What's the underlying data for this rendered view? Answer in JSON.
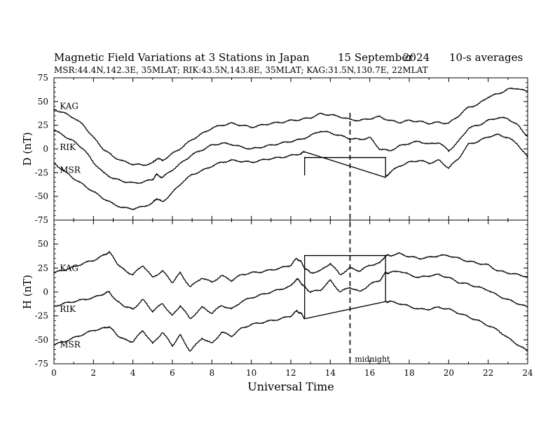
{
  "header": {
    "title": "Magnetic Field Variations at 3 Stations in Japan",
    "date": "15 September",
    "year": "2024",
    "averaging": "10-s averages",
    "stations_line": "MSR:44.4N,142.3E, 35MLAT;  RIK:43.5N,143.8E, 35MLAT;  KAG:31.5N,130.7E, 22MLAT"
  },
  "chart_data": [
    {
      "type": "line",
      "ylabel": "D (nT)",
      "xlabel": "",
      "xlim": [
        0,
        24
      ],
      "ylim": [
        -75,
        75
      ],
      "yticks": [
        75,
        50,
        25,
        0,
        -25,
        -50,
        -75
      ],
      "grid": false,
      "series": [
        {
          "name": "KAG",
          "x": [
            0,
            0.5,
            1,
            1.5,
            2,
            2.5,
            3,
            3.5,
            4,
            4.5,
            5,
            5.2,
            5.5,
            6,
            6.5,
            7,
            7.5,
            8,
            8.5,
            9,
            9.5,
            10,
            10.5,
            11,
            11.5,
            12,
            12.5,
            13,
            13.5,
            14,
            14.5,
            15,
            15.5,
            16,
            16.5,
            17,
            17.5,
            18,
            18.5,
            19,
            19.5,
            20,
            20.5,
            21,
            21.5,
            22,
            22.5,
            23,
            23.5,
            24
          ],
          "y": [
            42,
            38,
            33,
            25,
            12,
            0,
            -8,
            -13,
            -16,
            -17,
            -15,
            -10,
            -12,
            -5,
            2,
            10,
            16,
            22,
            25,
            27,
            25,
            23,
            25,
            27,
            28,
            30,
            31,
            33,
            37,
            36,
            34,
            31,
            30,
            32,
            34,
            30,
            28,
            30,
            29,
            27,
            28,
            27,
            35,
            44,
            47,
            55,
            58,
            63,
            64,
            60
          ]
        },
        {
          "name": "RIK",
          "x": [
            0,
            0.5,
            1,
            1.5,
            2,
            2.5,
            3,
            3.5,
            4,
            4.5,
            5,
            5.2,
            5.5,
            6,
            6.5,
            7,
            7.5,
            8,
            8.5,
            9,
            9.5,
            10,
            10.5,
            11,
            11.5,
            12,
            12.5,
            13,
            13.5,
            14,
            14.5,
            15,
            15.5,
            16,
            16.5,
            17,
            17.5,
            18,
            18.5,
            19,
            19.5,
            20,
            20.5,
            21,
            21.5,
            22,
            22.5,
            23,
            23.5,
            24
          ],
          "y": [
            20,
            14,
            8,
            0,
            -14,
            -25,
            -31,
            -34,
            -36,
            -35,
            -32,
            -27,
            -30,
            -22,
            -14,
            -6,
            -1,
            4,
            6,
            5,
            2,
            0,
            2,
            4,
            6,
            8,
            10,
            14,
            19,
            17,
            14,
            11,
            10,
            12,
            0,
            -2,
            3,
            6,
            8,
            5,
            7,
            -2,
            8,
            22,
            25,
            30,
            33,
            32,
            25,
            13
          ]
        },
        {
          "name": "MSR",
          "x": [
            0,
            0.5,
            1,
            1.5,
            2,
            2.5,
            3,
            3.5,
            4,
            4.5,
            5,
            5.2,
            5.5,
            6,
            6.5,
            7,
            7.5,
            8,
            8.5,
            9,
            9.5,
            10,
            10.5,
            11,
            11.5,
            12,
            12.5,
            12.7,
            16.8,
            17,
            17.5,
            18,
            18.5,
            19,
            19.5,
            20,
            20.5,
            21,
            21.5,
            22,
            22.5,
            23,
            23.5,
            24
          ],
          "y": [
            -15,
            -23,
            -31,
            -38,
            -45,
            -52,
            -58,
            -62,
            -63,
            -61,
            -57,
            -52,
            -56,
            -46,
            -35,
            -27,
            -23,
            -18,
            -14,
            -12,
            -13,
            -14,
            -12,
            -10,
            -9,
            -7,
            -5,
            -3,
            -30,
            -25,
            -18,
            -14,
            -12,
            -15,
            -12,
            -20,
            -10,
            5,
            8,
            13,
            15,
            12,
            5,
            -9
          ]
        }
      ],
      "annotations": [
        {
          "text": "KAG",
          "x": 0.15,
          "y": 45
        },
        {
          "text": "RIK",
          "x": 0.15,
          "y": 2
        },
        {
          "text": "MSR",
          "x": 0.15,
          "y": -22
        }
      ],
      "box": {
        "x1": 12.7,
        "x2": 16.8,
        "y_top": -9
      }
    },
    {
      "type": "line",
      "ylabel": "H (nT)",
      "xlabel": "Universal Time",
      "xlim": [
        0,
        24
      ],
      "ylim": [
        -75,
        75
      ],
      "yticks": [
        75,
        50,
        25,
        0,
        -25,
        -50,
        -75
      ],
      "xticks": [
        0,
        2,
        4,
        6,
        8,
        10,
        12,
        14,
        16,
        18,
        20,
        22,
        24
      ],
      "grid": false,
      "series": [
        {
          "name": "KAG",
          "x": [
            0,
            0.5,
            1,
            1.5,
            2,
            2.5,
            2.8,
            3.2,
            3.6,
            4,
            4.5,
            5,
            5.5,
            6,
            6.4,
            6.9,
            7.5,
            8,
            8.5,
            9,
            9.5,
            10,
            10.5,
            11,
            11.5,
            12,
            12.3,
            12.5,
            12.7,
            13,
            13.5,
            14,
            14.5,
            15,
            15.5,
            16,
            16.5,
            16.8,
            17,
            17.5,
            18,
            18.5,
            19,
            19.5,
            20,
            20.5,
            21,
            21.5,
            22,
            22.5,
            23,
            23.5,
            24
          ],
          "y": [
            20,
            23,
            26,
            30,
            33,
            38,
            42,
            30,
            22,
            18,
            28,
            15,
            22,
            10,
            20,
            5,
            15,
            10,
            17,
            12,
            18,
            20,
            21,
            23,
            25,
            28,
            35,
            32,
            25,
            20,
            22,
            30,
            18,
            25,
            22,
            28,
            30,
            38,
            38,
            40,
            37,
            35,
            36,
            38,
            38,
            35,
            32,
            30,
            28,
            22,
            20,
            18,
            16
          ]
        },
        {
          "name": "RIK",
          "x": [
            0,
            0.5,
            1,
            1.5,
            2,
            2.5,
            2.8,
            3.2,
            3.6,
            4,
            4.5,
            5,
            5.5,
            6,
            6.4,
            6.9,
            7.5,
            8,
            8.5,
            9,
            9.5,
            10,
            10.5,
            11,
            11.5,
            12,
            12.3,
            12.5,
            12.7,
            13,
            13.5,
            14,
            14.5,
            15,
            15.5,
            16,
            16.5,
            16.8,
            17,
            17.5,
            18,
            18.5,
            19,
            19.5,
            20,
            20.5,
            21,
            21.5,
            22,
            22.5,
            23,
            23.5,
            24
          ],
          "y": [
            -15,
            -12,
            -10,
            -8,
            -6,
            -2,
            0,
            -10,
            -15,
            -18,
            -8,
            -20,
            -12,
            -25,
            -14,
            -28,
            -16,
            -22,
            -14,
            -18,
            -10,
            -6,
            -3,
            0,
            3,
            6,
            14,
            10,
            5,
            0,
            2,
            12,
            0,
            5,
            0,
            8,
            12,
            20,
            20,
            22,
            18,
            15,
            17,
            18,
            15,
            10,
            8,
            5,
            2,
            -4,
            -8,
            -12,
            -16
          ]
        },
        {
          "name": "MSR",
          "x": [
            0,
            0.5,
            1,
            1.5,
            2,
            2.5,
            2.8,
            3.2,
            3.6,
            4,
            4.5,
            5,
            5.5,
            6,
            6.4,
            6.9,
            7.5,
            8,
            8.5,
            9,
            9.5,
            10,
            10.5,
            11,
            11.5,
            12,
            12.3,
            12.5,
            12.7,
            16.8,
            17,
            17.5,
            18,
            18.5,
            19,
            19.5,
            20,
            20.5,
            21,
            21.5,
            22,
            22.5,
            23,
            23.5,
            24
          ],
          "y": [
            -55,
            -52,
            -48,
            -44,
            -40,
            -38,
            -36,
            -45,
            -50,
            -52,
            -40,
            -54,
            -42,
            -56,
            -45,
            -62,
            -48,
            -54,
            -42,
            -46,
            -38,
            -34,
            -32,
            -30,
            -28,
            -25,
            -20,
            -22,
            -28,
            -10,
            -10,
            -12,
            -15,
            -18,
            -18,
            -16,
            -18,
            -22,
            -26,
            -30,
            -35,
            -40,
            -48,
            -55,
            -62
          ]
        }
      ],
      "annotations": [
        {
          "text": "KAG",
          "x": 0.15,
          "y": 25
        },
        {
          "text": "RIK",
          "x": 0.15,
          "y": -18
        },
        {
          "text": "MSR",
          "x": 0.15,
          "y": -55
        },
        {
          "text": "midnight",
          "x": 15.1,
          "y": -70
        }
      ],
      "box": {
        "x1": 12.7,
        "x2": 16.8,
        "y_top": 38
      }
    }
  ],
  "shared": {
    "midnight_x": 15
  }
}
